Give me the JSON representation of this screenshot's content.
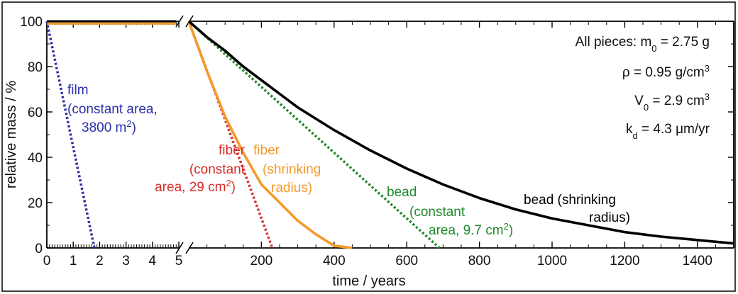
{
  "chart_data": {
    "type": "line",
    "xlabel": "time / years",
    "ylabel": "relative mass / %",
    "ylim": [
      0,
      100
    ],
    "y_ticks": [
      "0",
      "20",
      "40",
      "60",
      "80",
      "100"
    ],
    "broken_x_axis": true,
    "x_segments": [
      {
        "xlim": [
          0,
          5
        ],
        "unit": "years",
        "ticks": [
          "0",
          "1",
          "2",
          "3",
          "4",
          "5"
        ]
      },
      {
        "xlim": [
          0,
          1500
        ],
        "unit": "years",
        "ticks": [
          "200",
          "400",
          "600",
          "800",
          "1000",
          "1200",
          "1400"
        ]
      }
    ],
    "series": [
      {
        "id": "film",
        "label_lines": [
          "film",
          "(constant area,",
          "3800 m",
          ")"
        ],
        "label_superscript": "2",
        "color": "#2b2fa6",
        "style": "dotted",
        "segment": 0,
        "x": [
          0,
          1.8
        ],
        "y": [
          100,
          0
        ]
      },
      {
        "id": "fiber-constant",
        "label_lines": [
          "fiber",
          "(constant",
          "area, 29 cm",
          ")"
        ],
        "label_superscript": "2",
        "color": "#d92b2b",
        "style": "dotted",
        "segment": 1,
        "x": [
          0,
          230
        ],
        "y": [
          100,
          0
        ]
      },
      {
        "id": "fiber-shrinking",
        "label_lines": [
          "fiber",
          "(shrinking",
          "radius)"
        ],
        "color": "#f39a2b",
        "style": "solid",
        "segment": 1,
        "x": [
          0,
          50,
          100,
          150,
          200,
          250,
          300,
          350,
          400,
          450
        ],
        "y": [
          100,
          78,
          58,
          42,
          28,
          20,
          12,
          6,
          1,
          0
        ]
      },
      {
        "id": "bead-constant",
        "label_lines": [
          "bead",
          "(constant",
          "area, 9.7 cm",
          ")"
        ],
        "label_superscript": "2",
        "color": "#1f8a2a",
        "style": "dotted",
        "segment": 1,
        "x": [
          0,
          690
        ],
        "y": [
          100,
          0
        ]
      },
      {
        "id": "bead-shrinking",
        "label_lines": [
          "bead (shrinking",
          "radius)"
        ],
        "color": "#000000",
        "style": "solid",
        "segment": 1,
        "x": [
          0,
          50,
          100,
          150,
          200,
          250,
          300,
          350,
          400,
          500,
          600,
          700,
          800,
          900,
          1000,
          1100,
          1200,
          1250,
          1300,
          1400,
          1500
        ],
        "y": [
          100,
          93,
          87,
          80,
          74,
          68,
          62,
          57,
          52,
          43,
          35,
          28,
          22,
          17,
          13,
          10,
          7,
          6,
          5,
          3.5,
          2
        ]
      }
    ],
    "flat_lines_segment0": [
      {
        "series": "bead-shrinking",
        "color": "#000000",
        "y": 100
      },
      {
        "series": "fiber-shrinking",
        "color": "#f39a2b",
        "y": 99
      }
    ],
    "annotations": [
      {
        "text": "All pieces: m",
        "sub": "0",
        "rest": " = 2.75 g"
      },
      {
        "text": "ρ = 0.95 g/cm",
        "sup": "3",
        "rest": ""
      },
      {
        "text": "V",
        "sub": "0",
        "rest": " = 2.9 cm",
        "sup2": "3"
      },
      {
        "text": "k",
        "sub": "d",
        "rest": " = 4.3 μm/yr"
      }
    ]
  }
}
